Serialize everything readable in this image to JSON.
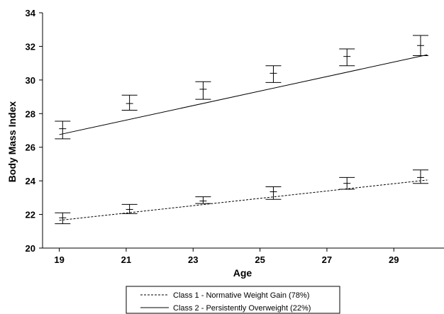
{
  "chart_data": {
    "type": "line",
    "title": "",
    "xlabel": "Age",
    "ylabel": "Body Mass Index",
    "xlim": [
      18.5,
      30.5
    ],
    "ylim": [
      20,
      34
    ],
    "x_ticks": [
      "19",
      "21",
      "23",
      "25",
      "27",
      "29"
    ],
    "y_ticks": [
      "20",
      "22",
      "24",
      "26",
      "28",
      "30",
      "32",
      "34"
    ],
    "grid": false,
    "legend_position": "bottom",
    "series": [
      {
        "name": "Class 1 - Normative Weight Gain (78%)",
        "style": "dashed",
        "fitted_line": [
          [
            19,
            21.65
          ],
          [
            30,
            24.05
          ]
        ],
        "points": [
          {
            "x": 19.1,
            "mean": 21.8,
            "low": 21.45,
            "high": 22.1
          },
          {
            "x": 21.1,
            "mean": 22.3,
            "low": 22.05,
            "high": 22.6
          },
          {
            "x": 23.3,
            "mean": 22.8,
            "low": 22.65,
            "high": 23.05
          },
          {
            "x": 25.4,
            "mean": 23.35,
            "low": 22.9,
            "high": 23.65
          },
          {
            "x": 27.6,
            "mean": 23.85,
            "low": 23.5,
            "high": 24.2
          },
          {
            "x": 29.8,
            "mean": 24.2,
            "low": 23.85,
            "high": 24.65
          }
        ]
      },
      {
        "name": "Class 2 - Persistently Overweight (22%)",
        "style": "solid",
        "fitted_line": [
          [
            19,
            26.75
          ],
          [
            30,
            31.5
          ]
        ],
        "points": [
          {
            "x": 19.1,
            "mean": 27.1,
            "low": 26.5,
            "high": 27.55
          },
          {
            "x": 21.1,
            "mean": 28.6,
            "low": 28.2,
            "high": 29.1
          },
          {
            "x": 23.3,
            "mean": 29.45,
            "low": 28.85,
            "high": 29.9
          },
          {
            "x": 25.4,
            "mean": 30.4,
            "low": 29.85,
            "high": 30.85
          },
          {
            "x": 27.6,
            "mean": 31.4,
            "low": 30.85,
            "high": 31.85
          },
          {
            "x": 29.8,
            "mean": 32.05,
            "low": 31.45,
            "high": 32.65
          }
        ]
      }
    ]
  }
}
